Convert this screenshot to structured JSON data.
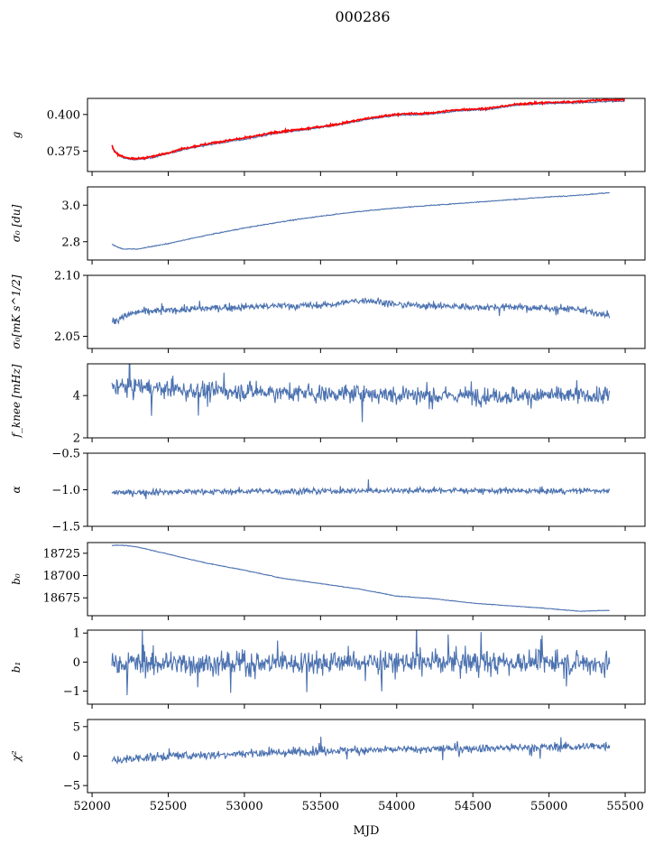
{
  "figure": {
    "title": "000286",
    "xlabel": "MJD"
  },
  "chart_data": [
    {
      "type": "line",
      "ylabel": "g",
      "xlim": [
        51970,
        55630
      ],
      "ylim": [
        0.361,
        0.411
      ],
      "yticks": [
        0.375,
        0.4
      ],
      "ytick_labels": [
        "0.375",
        "0.400"
      ],
      "xticks": [
        52000,
        52500,
        53000,
        53500,
        54000,
        54500,
        55000,
        55500
      ],
      "series": [
        {
          "color": "#4c72b0",
          "points": [
            [
              52130,
              0.377
            ],
            [
              52200,
              0.3705
            ],
            [
              52270,
              0.369
            ],
            [
              52400,
              0.3705
            ],
            [
              52600,
              0.376
            ],
            [
              52800,
              0.38
            ],
            [
              53000,
              0.383
            ],
            [
              53200,
              0.387
            ],
            [
              53400,
              0.3895
            ],
            [
              53600,
              0.3925
            ],
            [
              53800,
              0.3965
            ],
            [
              54000,
              0.3995
            ],
            [
              54200,
              0.4
            ],
            [
              54400,
              0.4025
            ],
            [
              54600,
              0.4035
            ],
            [
              54800,
              0.4065
            ],
            [
              55000,
              0.4075
            ],
            [
              55200,
              0.408
            ],
            [
              55400,
              0.409
            ],
            [
              55500,
              0.409
            ]
          ]
        },
        {
          "color": "#ff0000",
          "points": [
            [
              52130,
              0.379
            ],
            [
              52150,
              0.374
            ],
            [
              52200,
              0.3712
            ],
            [
              52270,
              0.3696
            ],
            [
              52400,
              0.3712
            ],
            [
              52600,
              0.3768
            ],
            [
              52800,
              0.3808
            ],
            [
              53000,
              0.3838
            ],
            [
              53200,
              0.3878
            ],
            [
              53400,
              0.3902
            ],
            [
              53600,
              0.3932
            ],
            [
              53800,
              0.3972
            ],
            [
              54000,
              0.4002
            ],
            [
              54200,
              0.4008
            ],
            [
              54400,
              0.4032
            ],
            [
              54600,
              0.4042
            ],
            [
              54800,
              0.4072
            ],
            [
              55000,
              0.4082
            ],
            [
              55200,
              0.4088
            ],
            [
              55350,
              0.41
            ],
            [
              55500,
              0.4102
            ]
          ]
        }
      ]
    },
    {
      "type": "line",
      "ylabel": "σ₀ [du]",
      "xlim": [
        51970,
        55630
      ],
      "ylim": [
        2.7,
        3.1
      ],
      "yticks": [
        2.8,
        3.0
      ],
      "ytick_labels": [
        "2.8",
        "3.0"
      ],
      "xticks": [
        52000,
        52500,
        53000,
        53500,
        54000,
        54500,
        55000,
        55500
      ],
      "series": [
        {
          "color": "#4c72b0",
          "points": [
            [
              52130,
              2.785
            ],
            [
              52200,
              2.76
            ],
            [
              52300,
              2.76
            ],
            [
              52500,
              2.79
            ],
            [
              52750,
              2.835
            ],
            [
              53000,
              2.875
            ],
            [
              53250,
              2.91
            ],
            [
              53500,
              2.94
            ],
            [
              53750,
              2.965
            ],
            [
              54000,
              2.985
            ],
            [
              54250,
              3.0
            ],
            [
              54500,
              3.015
            ],
            [
              54750,
              3.03
            ],
            [
              55000,
              3.045
            ],
            [
              55200,
              3.055
            ],
            [
              55400,
              3.068
            ]
          ]
        }
      ]
    },
    {
      "type": "line",
      "ylabel": "σ₀[mK s^1/2]",
      "xlim": [
        51970,
        55630
      ],
      "ylim": [
        2.04,
        2.1
      ],
      "yticks": [
        2.05,
        2.1
      ],
      "ytick_labels": [
        "2.05",
        "2.10"
      ],
      "xticks": [
        52000,
        52500,
        53000,
        53500,
        54000,
        54500,
        55000,
        55500
      ],
      "series": [
        {
          "color": "#4c72b0",
          "points": [
            [
              52130,
              2.061
            ],
            [
              52200,
              2.066
            ],
            [
              52300,
              2.07
            ],
            [
              52500,
              2.071
            ],
            [
              52750,
              2.073
            ],
            [
              53000,
              2.074
            ],
            [
              53250,
              2.075
            ],
            [
              53500,
              2.075
            ],
            [
              53800,
              2.08
            ],
            [
              54000,
              2.076
            ],
            [
              54250,
              2.075
            ],
            [
              54500,
              2.074
            ],
            [
              54750,
              2.074
            ],
            [
              55000,
              2.073
            ],
            [
              55200,
              2.072
            ],
            [
              55400,
              2.066
            ]
          ]
        }
      ]
    },
    {
      "type": "line",
      "ylabel": "f_knee [mHz]",
      "xlim": [
        51970,
        55630
      ],
      "ylim": [
        2.0,
        5.5
      ],
      "yticks": [
        2,
        4
      ],
      "ytick_labels": [
        "2",
        "4"
      ],
      "xticks": [
        52000,
        52500,
        53000,
        53500,
        54000,
        54500,
        55000,
        55500
      ],
      "series": [
        {
          "color": "#4c72b0",
          "points": [
            [
              52130,
              4.5
            ],
            [
              52300,
              4.4
            ],
            [
              52500,
              4.3
            ],
            [
              52750,
              4.2
            ],
            [
              53000,
              4.2
            ],
            [
              53250,
              4.15
            ],
            [
              53500,
              4.1
            ],
            [
              53750,
              4.1
            ],
            [
              54000,
              4.05
            ],
            [
              54250,
              4.0
            ],
            [
              54500,
              4.0
            ],
            [
              54750,
              4.0
            ],
            [
              55000,
              4.0
            ],
            [
              55200,
              4.0
            ],
            [
              55400,
              4.0
            ]
          ]
        }
      ]
    },
    {
      "type": "line",
      "ylabel": "α",
      "xlim": [
        51970,
        55630
      ],
      "ylim": [
        -1.5,
        -0.5
      ],
      "yticks": [
        -1.5,
        -1.0,
        -0.5
      ],
      "ytick_labels": [
        "−1.5",
        "−1.0",
        "−0.5"
      ],
      "xticks": [
        52000,
        52500,
        53000,
        53500,
        54000,
        54500,
        55000,
        55500
      ],
      "series": [
        {
          "color": "#4c72b0",
          "points": [
            [
              52130,
              -1.04
            ],
            [
              52500,
              -1.03
            ],
            [
              53000,
              -1.02
            ],
            [
              53500,
              -1.02
            ],
            [
              54000,
              -1.01
            ],
            [
              54500,
              -1.01
            ],
            [
              55000,
              -1.02
            ],
            [
              55400,
              -1.01
            ]
          ]
        }
      ]
    },
    {
      "type": "line",
      "ylabel": "b₀",
      "xlim": [
        51970,
        55630
      ],
      "ylim": [
        18655,
        18737
      ],
      "yticks": [
        18675,
        18700,
        18725
      ],
      "ytick_labels": [
        "18675",
        "18700",
        "18725"
      ],
      "xticks": [
        52000,
        52500,
        53000,
        53500,
        54000,
        54500,
        55000,
        55500
      ],
      "series": [
        {
          "color": "#4c72b0",
          "points": [
            [
              52130,
              18734
            ],
            [
              52200,
              18734
            ],
            [
              52300,
              18732
            ],
            [
              52500,
              18724
            ],
            [
              52750,
              18714
            ],
            [
              53000,
              18706
            ],
            [
              53250,
              18697
            ],
            [
              53500,
              18691
            ],
            [
              53750,
              18685
            ],
            [
              54000,
              18677
            ],
            [
              54250,
              18674
            ],
            [
              54500,
              18669
            ],
            [
              54750,
              18666
            ],
            [
              55000,
              18663
            ],
            [
              55200,
              18660
            ],
            [
              55400,
              18661
            ]
          ]
        }
      ]
    },
    {
      "type": "line",
      "ylabel": "b₁",
      "xlim": [
        51970,
        55630
      ],
      "ylim": [
        -1.45,
        1.1
      ],
      "yticks": [
        -1,
        0,
        1
      ],
      "ytick_labels": [
        "−1",
        "0",
        "1"
      ],
      "xticks": [
        52000,
        52500,
        53000,
        53500,
        54000,
        54500,
        55000,
        55500
      ],
      "series": [
        {
          "color": "#4c72b0",
          "points": [
            [
              52130,
              -0.05
            ],
            [
              52500,
              -0.05
            ],
            [
              53000,
              -0.05
            ],
            [
              53500,
              0.0
            ],
            [
              54000,
              0.0
            ],
            [
              54500,
              0.0
            ],
            [
              55000,
              0.0
            ],
            [
              55400,
              -0.05
            ]
          ]
        }
      ]
    },
    {
      "type": "line",
      "ylabel": "χ²",
      "xlim": [
        51970,
        55630
      ],
      "ylim": [
        -6.2,
        6.2
      ],
      "yticks": [
        -5,
        0,
        5
      ],
      "ytick_labels": [
        "−5",
        "0",
        "5"
      ],
      "xticks": [
        52000,
        52500,
        53000,
        53500,
        54000,
        54500,
        55000,
        55500
      ],
      "xtick_labels": [
        "52000",
        "52500",
        "53000",
        "53500",
        "54000",
        "54500",
        "55000",
        "55500"
      ],
      "series": [
        {
          "color": "#4c72b0",
          "points": [
            [
              52130,
              -0.8
            ],
            [
              52300,
              -0.3
            ],
            [
              52500,
              0.0
            ],
            [
              52750,
              0.2
            ],
            [
              53000,
              0.5
            ],
            [
              53250,
              0.6
            ],
            [
              53500,
              0.9
            ],
            [
              53750,
              1.0
            ],
            [
              54000,
              1.1
            ],
            [
              54250,
              1.2
            ],
            [
              54500,
              1.3
            ],
            [
              54750,
              1.4
            ],
            [
              55000,
              1.5
            ],
            [
              55200,
              1.6
            ],
            [
              55400,
              1.8
            ]
          ]
        }
      ]
    }
  ]
}
